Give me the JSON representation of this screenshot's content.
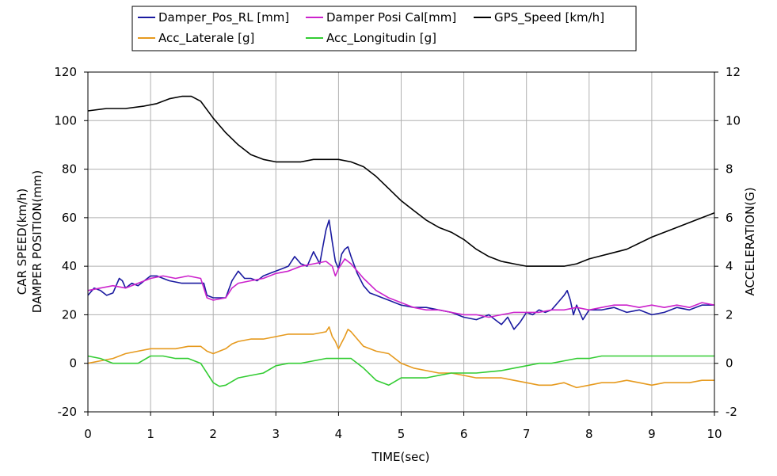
{
  "chart_data": {
    "type": "line",
    "title": "",
    "xlabel": "TIME(sec)",
    "ylabel_left": [
      "CAR SPEED(km/h)",
      "DAMPER POSITION(mm)"
    ],
    "ylabel_right": "ACCELERATION(G)",
    "xlim": [
      0,
      10
    ],
    "ylim_left": [
      -20,
      120
    ],
    "ylim_right": [
      -2,
      12
    ],
    "x_ticks": [
      "0",
      "1",
      "2",
      "3",
      "4",
      "5",
      "6",
      "7",
      "8",
      "9",
      "10"
    ],
    "y_ticks_left": [
      "-20",
      "0",
      "20",
      "40",
      "60",
      "80",
      "100",
      "120"
    ],
    "y_ticks_right": [
      "-2",
      "0",
      "2",
      "4",
      "6",
      "8",
      "10",
      "12"
    ],
    "grid": true,
    "legend_position": "top",
    "series": [
      {
        "name": "Damper_Pos_RL [mm]",
        "axis": "left",
        "color": "#1a1aa0",
        "x": [
          0,
          0.1,
          0.2,
          0.3,
          0.4,
          0.5,
          0.55,
          0.6,
          0.7,
          0.8,
          0.9,
          1.0,
          1.1,
          1.2,
          1.3,
          1.5,
          1.7,
          1.85,
          1.9,
          2.0,
          2.1,
          2.2,
          2.3,
          2.4,
          2.5,
          2.6,
          2.7,
          2.8,
          2.9,
          3.0,
          3.1,
          3.2,
          3.3,
          3.4,
          3.5,
          3.6,
          3.7,
          3.75,
          3.8,
          3.85,
          3.9,
          3.95,
          4.0,
          4.05,
          4.1,
          4.15,
          4.2,
          4.3,
          4.4,
          4.5,
          4.6,
          4.7,
          4.8,
          4.9,
          5.0,
          5.2,
          5.4,
          5.6,
          5.8,
          6.0,
          6.2,
          6.4,
          6.5,
          6.6,
          6.7,
          6.8,
          6.9,
          7.0,
          7.1,
          7.2,
          7.3,
          7.4,
          7.5,
          7.6,
          7.65,
          7.7,
          7.75,
          7.8,
          7.9,
          8.0,
          8.2,
          8.4,
          8.6,
          8.8,
          9.0,
          9.2,
          9.4,
          9.6,
          9.8,
          10.0
        ],
        "y": [
          28,
          31,
          30,
          28,
          29,
          35,
          34,
          31,
          33,
          32,
          34,
          36,
          36,
          35,
          34,
          33,
          33,
          33,
          28,
          27,
          27,
          27,
          34,
          38,
          35,
          35,
          34,
          36,
          37,
          38,
          39,
          40,
          44,
          41,
          40,
          46,
          41,
          48,
          55,
          59,
          50,
          42,
          39,
          45,
          47,
          48,
          44,
          37,
          32,
          29,
          28,
          27,
          26,
          25,
          24,
          23,
          23,
          22,
          21,
          19,
          18,
          20,
          18,
          16,
          19,
          14,
          17,
          21,
          20,
          22,
          21,
          22,
          25,
          28,
          30,
          26,
          20,
          24,
          18,
          22,
          22,
          23,
          21,
          22,
          20,
          21,
          23,
          22,
          24,
          24
        ]
      },
      {
        "name": "Damper Posi Cal[mm]",
        "axis": "left",
        "color": "#cc22cc",
        "x": [
          0,
          0.2,
          0.4,
          0.6,
          0.8,
          1.0,
          1.2,
          1.4,
          1.6,
          1.8,
          1.9,
          2.0,
          2.2,
          2.3,
          2.4,
          2.6,
          2.8,
          3.0,
          3.2,
          3.4,
          3.6,
          3.8,
          3.9,
          3.95,
          4.0,
          4.1,
          4.2,
          4.4,
          4.6,
          4.8,
          5.0,
          5.2,
          5.4,
          5.6,
          5.8,
          6.0,
          6.2,
          6.4,
          6.6,
          6.8,
          7.0,
          7.2,
          7.4,
          7.6,
          7.8,
          8.0,
          8.2,
          8.4,
          8.6,
          8.8,
          9.0,
          9.2,
          9.4,
          9.6,
          9.8,
          10.0
        ],
        "y": [
          30,
          31,
          32,
          31,
          33,
          35,
          36,
          35,
          36,
          35,
          27,
          26,
          27,
          31,
          33,
          34,
          35,
          37,
          38,
          40,
          41,
          42,
          40,
          36,
          39,
          43,
          41,
          35,
          30,
          27,
          25,
          23,
          22,
          22,
          21,
          20,
          20,
          19,
          20,
          21,
          21,
          21,
          22,
          22,
          23,
          22,
          23,
          24,
          24,
          23,
          24,
          23,
          24,
          23,
          25,
          24
        ]
      },
      {
        "name": "GPS_Speed [km/h]",
        "axis": "left",
        "color": "#000000",
        "x": [
          0,
          0.3,
          0.6,
          0.9,
          1.1,
          1.3,
          1.5,
          1.65,
          1.8,
          2.0,
          2.2,
          2.4,
          2.6,
          2.8,
          3.0,
          3.2,
          3.4,
          3.6,
          3.8,
          4.0,
          4.2,
          4.4,
          4.6,
          4.8,
          5.0,
          5.2,
          5.4,
          5.6,
          5.8,
          6.0,
          6.2,
          6.4,
          6.6,
          6.8,
          7.0,
          7.2,
          7.4,
          7.6,
          7.8,
          8.0,
          8.3,
          8.6,
          9.0,
          9.3,
          9.6,
          9.8,
          10.0
        ],
        "y": [
          104,
          105,
          105,
          106,
          107,
          109,
          110,
          110,
          108,
          101,
          95,
          90,
          86,
          84,
          83,
          83,
          83,
          84,
          84,
          84,
          83,
          81,
          77,
          72,
          67,
          63,
          59,
          56,
          54,
          51,
          47,
          44,
          42,
          41,
          40,
          40,
          40,
          40,
          41,
          43,
          45,
          47,
          52,
          55,
          58,
          60,
          62
        ]
      },
      {
        "name": "Acc_Laterale [g]",
        "axis": "right",
        "color": "#e69a1e",
        "x": [
          0,
          0.2,
          0.4,
          0.6,
          0.8,
          1.0,
          1.2,
          1.4,
          1.6,
          1.8,
          1.9,
          2.0,
          2.1,
          2.2,
          2.3,
          2.4,
          2.6,
          2.8,
          3.0,
          3.2,
          3.4,
          3.6,
          3.8,
          3.85,
          3.9,
          3.95,
          4.0,
          4.1,
          4.15,
          4.2,
          4.3,
          4.4,
          4.5,
          4.6,
          4.8,
          5.0,
          5.2,
          5.4,
          5.6,
          5.8,
          6.0,
          6.2,
          6.4,
          6.6,
          6.8,
          7.0,
          7.2,
          7.4,
          7.6,
          7.8,
          8.0,
          8.2,
          8.4,
          8.6,
          8.8,
          9.0,
          9.2,
          9.4,
          9.6,
          9.8,
          10.0
        ],
        "y": [
          0.0,
          0.1,
          0.2,
          0.4,
          0.5,
          0.6,
          0.6,
          0.6,
          0.7,
          0.7,
          0.5,
          0.4,
          0.5,
          0.6,
          0.8,
          0.9,
          1.0,
          1.0,
          1.1,
          1.2,
          1.2,
          1.2,
          1.3,
          1.5,
          1.1,
          0.9,
          0.6,
          1.1,
          1.4,
          1.3,
          1.0,
          0.7,
          0.6,
          0.5,
          0.4,
          0.0,
          -0.2,
          -0.3,
          -0.4,
          -0.4,
          -0.5,
          -0.6,
          -0.6,
          -0.6,
          -0.7,
          -0.8,
          -0.9,
          -0.9,
          -0.8,
          -1.0,
          -0.9,
          -0.8,
          -0.8,
          -0.7,
          -0.8,
          -0.9,
          -0.8,
          -0.8,
          -0.8,
          -0.7,
          -0.7
        ]
      },
      {
        "name": "Acc_Longitudin [g]",
        "axis": "right",
        "color": "#33cc33",
        "x": [
          0,
          0.2,
          0.4,
          0.6,
          0.8,
          1.0,
          1.2,
          1.4,
          1.6,
          1.8,
          2.0,
          2.1,
          2.2,
          2.4,
          2.6,
          2.8,
          3.0,
          3.2,
          3.4,
          3.6,
          3.8,
          4.0,
          4.2,
          4.4,
          4.6,
          4.8,
          5.0,
          5.2,
          5.4,
          5.6,
          5.8,
          6.0,
          6.2,
          6.4,
          6.6,
          6.8,
          7.0,
          7.2,
          7.4,
          7.6,
          7.8,
          8.0,
          8.2,
          8.4,
          8.6,
          8.8,
          9.0,
          9.2,
          9.4,
          9.6,
          9.8,
          10.0
        ],
        "y": [
          0.3,
          0.2,
          0.0,
          0.0,
          0.0,
          0.3,
          0.3,
          0.2,
          0.2,
          0.0,
          -0.8,
          -0.95,
          -0.9,
          -0.6,
          -0.5,
          -0.4,
          -0.1,
          0.0,
          0.0,
          0.1,
          0.2,
          0.2,
          0.2,
          -0.2,
          -0.7,
          -0.9,
          -0.6,
          -0.6,
          -0.6,
          -0.5,
          -0.4,
          -0.4,
          -0.4,
          -0.35,
          -0.3,
          -0.2,
          -0.1,
          0.0,
          0.0,
          0.1,
          0.2,
          0.2,
          0.3,
          0.3,
          0.3,
          0.3,
          0.3,
          0.3,
          0.3,
          0.3,
          0.3,
          0.3
        ]
      }
    ]
  }
}
